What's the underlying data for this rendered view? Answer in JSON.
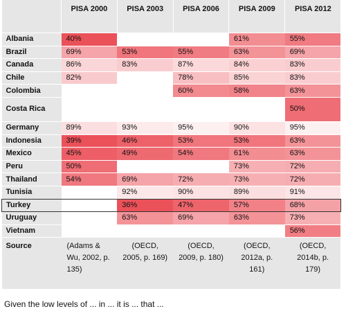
{
  "table": {
    "header": [
      "",
      "PISA 2000",
      "PISA 2003",
      "PISA 2006",
      "PISA 2009",
      "PISA 2012"
    ],
    "highlight_row": "Turkey",
    "rows": [
      {
        "country": "Albania",
        "values": [
          "40%",
          "",
          "",
          "61%",
          "55%"
        ]
      },
      {
        "country": "Brazil",
        "values": [
          "69%",
          "53%",
          "55%",
          "63%",
          "69%"
        ]
      },
      {
        "country": "Canada",
        "values": [
          "86%",
          "83%",
          "87%",
          "84%",
          "83%"
        ]
      },
      {
        "country": "Chile",
        "values": [
          "82%",
          "",
          "78%",
          "85%",
          "83%"
        ]
      },
      {
        "country": "Colombia",
        "values": [
          "",
          "",
          "60%",
          "58%",
          "63%"
        ]
      },
      {
        "country": "Costa Rica",
        "values": [
          "",
          "",
          "",
          "",
          "50%"
        ]
      },
      {
        "country": "Germany",
        "values": [
          "89%",
          "93%",
          "95%",
          "90%",
          "95%"
        ]
      },
      {
        "country": "Indonesia",
        "values": [
          "39%",
          "46%",
          "53%",
          "53%",
          "63%"
        ]
      },
      {
        "country": "Mexico",
        "values": [
          "45%",
          "49%",
          "54%",
          "61%",
          "63%"
        ]
      },
      {
        "country": "Peru",
        "values": [
          "50%",
          "",
          "",
          "73%",
          "72%"
        ]
      },
      {
        "country": "Thailand",
        "values": [
          "54%",
          "69%",
          "72%",
          "73%",
          "72%"
        ]
      },
      {
        "country": "Tunisia",
        "values": [
          "",
          "92%",
          "90%",
          "89%",
          "91%"
        ]
      },
      {
        "country": "Turkey",
        "values": [
          "",
          "36%",
          "47%",
          "57%",
          "68%"
        ]
      },
      {
        "country": "Uruguay",
        "values": [
          "",
          "63%",
          "69%",
          "63%",
          "73%"
        ]
      },
      {
        "country": "Vietnam",
        "values": [
          "",
          "",
          "",
          "",
          "56%"
        ]
      }
    ],
    "source": {
      "label": "Source",
      "cells": [
        "(Adams & Wu, 2002, p. 135)",
        "(OECD, 2005, p. 169)",
        "(OECD, 2009, p. 180)",
        "(OECD, 2012a, p. 161)",
        "(OECD, 2014b, p. 179)"
      ]
    }
  },
  "colors": {
    "header_bg": "#e6e6e6",
    "cell_red": "#e8323c",
    "highlight_border": "#333333"
  },
  "footer_text": "Given the low levels of ... in ... it is ... that ..."
}
